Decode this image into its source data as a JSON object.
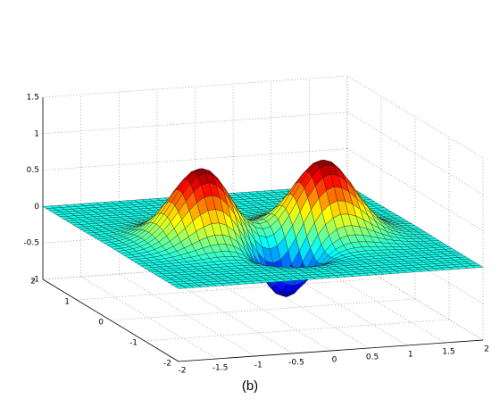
{
  "chart_data": {
    "type": "surface",
    "caption": "(b)",
    "x_range": [
      -2,
      2
    ],
    "y_range": [
      -2,
      2
    ],
    "z_range": [
      -1,
      1.5
    ],
    "x_ticks": [
      "-2",
      "-1.5",
      "-1",
      "-0.5",
      "0",
      "0.5",
      "1",
      "1.5",
      "2"
    ],
    "y_ticks": [
      "-2",
      "-1",
      "0",
      "1",
      "2"
    ],
    "z_ticks": [
      "-1",
      "-0.5",
      "0",
      "0.5",
      "1",
      "1.5"
    ],
    "grid": true,
    "colormap": "jet",
    "features": [
      {
        "label": "peak",
        "x": -0.8,
        "y": 0.0,
        "z": 1.0
      },
      {
        "label": "peak",
        "x": 0.8,
        "y": 0.0,
        "z": 1.0
      },
      {
        "label": "trough",
        "x": 0.0,
        "y": -0.6,
        "z": -0.7
      }
    ]
  }
}
